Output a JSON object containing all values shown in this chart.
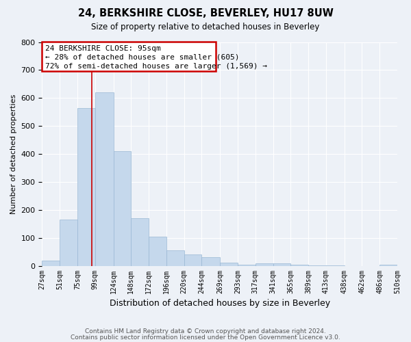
{
  "title": "24, BERKSHIRE CLOSE, BEVERLEY, HU17 8UW",
  "subtitle": "Size of property relative to detached houses in Beverley",
  "xlabel": "Distribution of detached houses by size in Beverley",
  "ylabel": "Number of detached properties",
  "bar_color": "#c5d8ec",
  "bar_edge_color": "#9ab8d4",
  "background_color": "#edf1f7",
  "grid_color": "#ffffff",
  "annotation_box_color": "#cc0000",
  "vline_color": "#cc0000",
  "bin_edges": [
    27,
    51,
    75,
    99,
    124,
    148,
    172,
    196,
    220,
    244,
    269,
    293,
    317,
    341,
    365,
    389,
    413,
    438,
    462,
    486,
    510
  ],
  "values": [
    18,
    165,
    565,
    620,
    410,
    170,
    105,
    55,
    40,
    30,
    10,
    3,
    8,
    8,
    3,
    2,
    1,
    0,
    0,
    5
  ],
  "property_size": 95,
  "annotation_lines": [
    "24 BERKSHIRE CLOSE: 95sqm",
    "← 28% of detached houses are smaller (605)",
    "72% of semi-detached houses are larger (1,569) →"
  ],
  "footer_lines": [
    "Contains HM Land Registry data © Crown copyright and database right 2024.",
    "Contains public sector information licensed under the Open Government Licence v3.0."
  ],
  "ylim": [
    0,
    800
  ],
  "yticks": [
    0,
    100,
    200,
    300,
    400,
    500,
    600,
    700,
    800
  ],
  "tick_labels": [
    "27sqm",
    "51sqm",
    "75sqm",
    "99sqm",
    "124sqm",
    "148sqm",
    "172sqm",
    "196sqm",
    "220sqm",
    "244sqm",
    "269sqm",
    "293sqm",
    "317sqm",
    "341sqm",
    "365sqm",
    "389sqm",
    "413sqm",
    "438sqm",
    "462sqm",
    "486sqm",
    "510sqm"
  ]
}
